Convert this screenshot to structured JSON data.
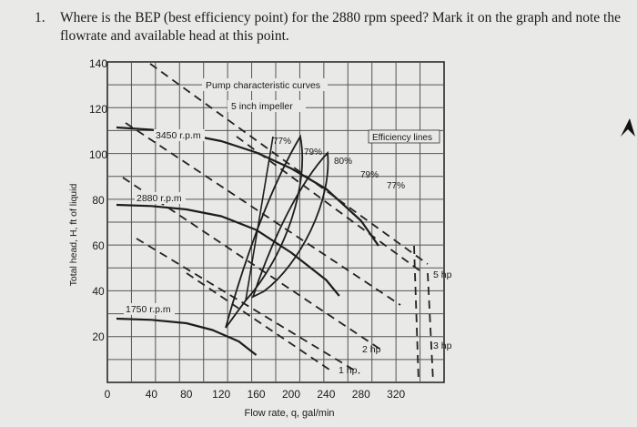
{
  "question": {
    "number": "1.",
    "text": "Where is the BEP (best efficiency point) for the 2880 rpm speed? Mark it on the graph and note the flowrate and available head at this point."
  },
  "chart_data": {
    "type": "line",
    "title": "Pump characteristic curves",
    "subtitle": "5 inch impeller",
    "xlabel": "Flow rate, q, gal/min",
    "ylabel": "Total head, H, ft of liquid",
    "xlim": [
      0,
      320
    ],
    "ylim": [
      0,
      140
    ],
    "x_ticks": [
      "0",
      "40",
      "80",
      "120",
      "160",
      "200",
      "240",
      "280",
      "320"
    ],
    "y_ticks": [
      "20",
      "40",
      "60",
      "80",
      "100",
      "120",
      "140"
    ],
    "grid": true,
    "series": [
      {
        "name": "3450 r.p.m",
        "x": [
          0,
          40,
          80,
          120,
          160,
          200,
          240,
          280,
          300
        ],
        "y": [
          112,
          111,
          109,
          106,
          101,
          94,
          85,
          71,
          60
        ]
      },
      {
        "name": "2880 r.p.m",
        "x": [
          0,
          40,
          80,
          120,
          160,
          200,
          240,
          255
        ],
        "y": [
          78,
          77.5,
          76,
          73,
          67,
          57,
          45,
          38
        ]
      },
      {
        "name": "1750 r.p.m",
        "x": [
          0,
          40,
          80,
          110,
          140,
          160
        ],
        "y": [
          28,
          27.5,
          26,
          23,
          18,
          12
        ]
      }
    ],
    "efficiency_labels": [
      "77%",
      "79%",
      "80%",
      "79%",
      "77%"
    ],
    "efficiency_legend": "Efficiency lines",
    "power_labels": [
      "5 hp",
      "3 hp",
      "2 hp",
      "1 hp"
    ]
  }
}
